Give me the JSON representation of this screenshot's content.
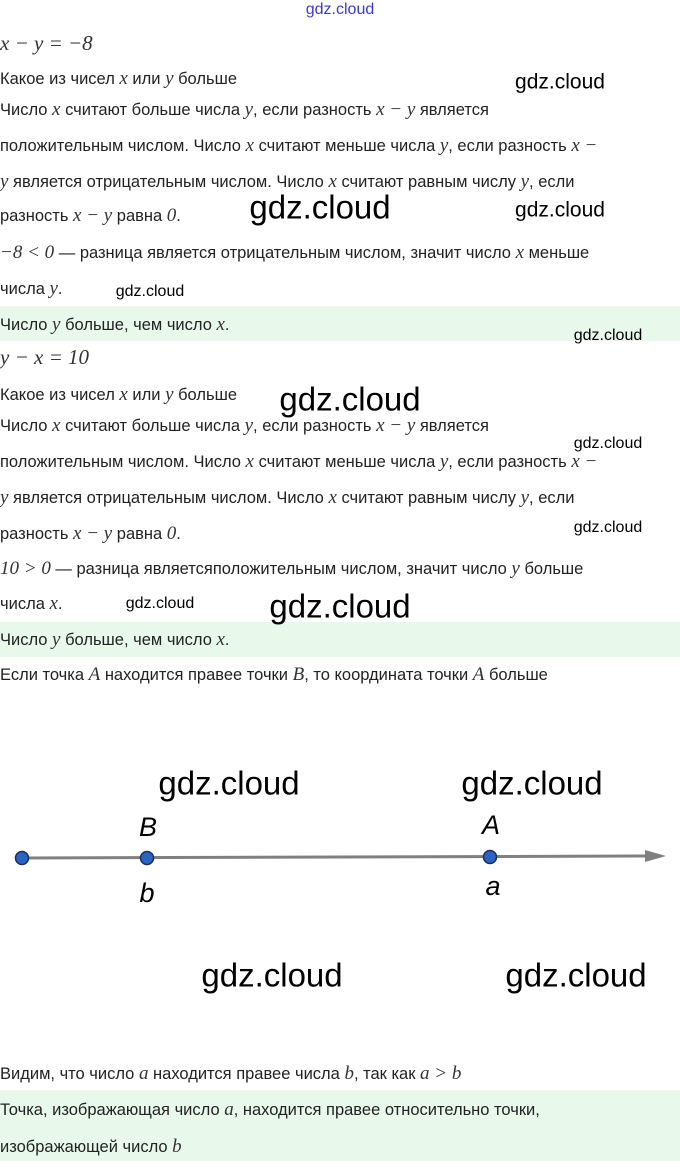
{
  "header": {
    "site_link": "gdz.cloud",
    "link_color": "#3a3ad0"
  },
  "highlight_color": "#e8f9ec",
  "lines": [
    [
      {
        "m": "x − y = −8"
      }
    ],
    [
      "Какое из чисел ",
      {
        "m": "x"
      },
      " или ",
      {
        "m": "y"
      },
      " больше"
    ],
    [
      "Число ",
      {
        "m": "x"
      },
      " считают больше числа ",
      {
        "m": "y"
      },
      ", если разность ",
      {
        "m": "x − y"
      },
      " является"
    ],
    [
      "положительным числом. Число ",
      {
        "m": "x"
      },
      " считают меньше числа ",
      {
        "m": "y"
      },
      ", если разность ",
      {
        "m": "x −"
      }
    ],
    [
      {
        "m": "y"
      },
      " является отрицательным числом. Число ",
      {
        "m": "x"
      },
      " считают равным числу ",
      {
        "m": "y"
      },
      ", если"
    ],
    [
      "разность ",
      {
        "m": "x − y"
      },
      " равна ",
      {
        "m": "0"
      },
      "."
    ],
    [
      {
        "m": "−8 < 0"
      },
      " — разница является отрицательным числом, значит число ",
      {
        "m": "x"
      },
      " меньше"
    ],
    [
      "числа ",
      {
        "m": "y"
      },
      "."
    ],
    [
      "Число ",
      {
        "m": "y"
      },
      " больше, чем число ",
      {
        "m": "x"
      },
      "."
    ],
    [
      {
        "m": "y − x = 10"
      }
    ],
    [
      "Какое из чисел ",
      {
        "m": "x"
      },
      " или ",
      {
        "m": "y"
      },
      " больше"
    ],
    [
      "Число ",
      {
        "m": "x"
      },
      " считают больше числа ",
      {
        "m": "y"
      },
      ", если разность ",
      {
        "m": "x − y"
      },
      " является"
    ],
    [
      "положительным числом. Число ",
      {
        "m": "x"
      },
      " считают меньше числа ",
      {
        "m": "y"
      },
      ", если разность ",
      {
        "m": "x −"
      }
    ],
    [
      {
        "m": "y"
      },
      " является отрицательным числом. Число ",
      {
        "m": "x"
      },
      " считают равным числу ",
      {
        "m": "y"
      },
      ", если"
    ],
    [
      "разность ",
      {
        "m": "x − y"
      },
      " равна ",
      {
        "m": "0"
      },
      "."
    ],
    [
      {
        "m": "10 > 0"
      },
      " — разница являетсяположительным числом, значит число ",
      {
        "m": "y"
      },
      " больше"
    ],
    [
      "числа ",
      {
        "m": "x"
      },
      "."
    ],
    [
      "Число ",
      {
        "m": "y"
      },
      " больше, чем число ",
      {
        "m": "x"
      },
      "."
    ],
    [
      "Если точка ",
      {
        "m": "A"
      },
      " находится правее точки ",
      {
        "m": "B"
      },
      ", то координата точки ",
      {
        "m": "A"
      },
      " больше"
    ],
    [
      "Видим, что число ",
      {
        "m": "a"
      },
      " находится правее числа ",
      {
        "m": "b"
      },
      ", так как ",
      {
        "m": "a  >  b"
      }
    ],
    [
      "Точка, изображающая число ",
      {
        "m": "a"
      },
      ", находится правее относительно точки,"
    ],
    [
      "изображающей число ",
      {
        "m": "b"
      }
    ]
  ],
  "figure": {
    "point_color": "#2a63c4",
    "axis_color": "#808080",
    "points": [
      {
        "upper": "",
        "lower": ""
      },
      {
        "upper": "B",
        "lower": "b"
      },
      {
        "upper": "A",
        "lower": "a"
      }
    ]
  },
  "watermark": "gdz.cloud"
}
